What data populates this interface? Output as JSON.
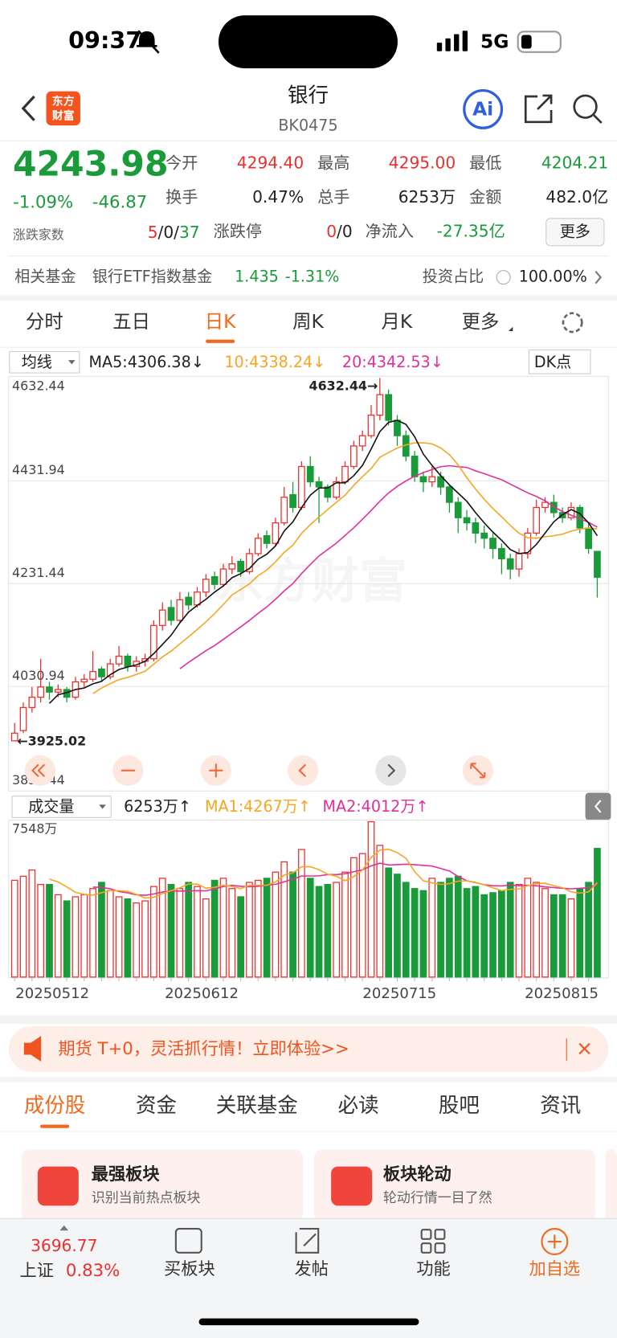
{
  "status": {
    "time": "09:37",
    "network": "5G"
  },
  "header": {
    "logo_top": "东方",
    "logo_bottom": "财富",
    "title": "银行",
    "code": "BK0475",
    "ai": "Ai"
  },
  "quote": {
    "price": "4243.98",
    "change_pct": "-1.09%",
    "change": "-46.87",
    "breadth_label": "涨跌家数",
    "breadth_up": "5",
    "breadth_flat": "/0/",
    "breadth_down": "37",
    "open_label": "今开",
    "open": "4294.40",
    "high_label": "最高",
    "high": "4295.00",
    "low_label": "最低",
    "low": "4204.21",
    "turnover_label": "换手",
    "turnover": "0.47%",
    "volume_label": "总手",
    "volume": "6253万",
    "amount_label": "金额",
    "amount": "482.0亿",
    "limit_label": "涨跌停",
    "limit_up": "0",
    "limit_rest": "/0",
    "inflow_label": "净流入",
    "inflow": "-27.35亿",
    "more": "更多"
  },
  "fund": {
    "label": "相关基金",
    "name": "银行ETF指数基金",
    "price": "1.435",
    "change": "-1.31%",
    "ratio_label": "投资占比",
    "ratio": "100.00%"
  },
  "tabs": [
    "分时",
    "五日",
    "日K",
    "周K",
    "月K",
    "更多"
  ],
  "kline": {
    "ma_select": "均线",
    "ma5": "MA5:4306.38↓",
    "ma10": "10:4338.24↓",
    "ma20": "20:4342.53↓",
    "dk": "DK点",
    "watermark": "东方财富",
    "ylim": [
      3830.44,
      4632.44
    ],
    "yticks": [
      4632.44,
      4431.94,
      4231.44,
      4030.94,
      3830.44
    ],
    "high_note": "4632.44→",
    "low_note": "←3925.02",
    "candles": [
      [
        3925,
        3960,
        3925.02,
        3940
      ],
      [
        3945,
        4000,
        3940,
        3990
      ],
      [
        3990,
        4030,
        3980,
        4010
      ],
      [
        4010,
        4085,
        4000,
        4030
      ],
      [
        4030,
        4040,
        4005,
        4020
      ],
      [
        4020,
        4035,
        4010,
        4025
      ],
      [
        4025,
        4030,
        4000,
        4010
      ],
      [
        4010,
        4050,
        4005,
        4040
      ],
      [
        4040,
        4055,
        4030,
        4045
      ],
      [
        4045,
        4100,
        4040,
        4060
      ],
      [
        4065,
        4070,
        4040,
        4050
      ],
      [
        4050,
        4085,
        4045,
        4075
      ],
      [
        4075,
        4110,
        4070,
        4090
      ],
      [
        4090,
        4095,
        4060,
        4070
      ],
      [
        4070,
        4090,
        4060,
        4080
      ],
      [
        4080,
        4095,
        4070,
        4085
      ],
      [
        4085,
        4160,
        4080,
        4150
      ],
      [
        4150,
        4195,
        4140,
        4180
      ],
      [
        4185,
        4200,
        4150,
        4160
      ],
      [
        4160,
        4215,
        4155,
        4200
      ],
      [
        4205,
        4215,
        4180,
        4190
      ],
      [
        4190,
        4225,
        4185,
        4215
      ],
      [
        4215,
        4250,
        4205,
        4240
      ],
      [
        4245,
        4255,
        4220,
        4230
      ],
      [
        4230,
        4270,
        4225,
        4260
      ],
      [
        4260,
        4285,
        4250,
        4270
      ],
      [
        4275,
        4280,
        4245,
        4255
      ],
      [
        4255,
        4300,
        4250,
        4290
      ],
      [
        4290,
        4330,
        4285,
        4320
      ],
      [
        4325,
        4335,
        4300,
        4310
      ],
      [
        4310,
        4360,
        4305,
        4350
      ],
      [
        4350,
        4420,
        4345,
        4400
      ],
      [
        4405,
        4430,
        4370,
        4380
      ],
      [
        4380,
        4470,
        4375,
        4460
      ],
      [
        4460,
        4480,
        4420,
        4430
      ],
      [
        4430,
        4440,
        4350,
        4420
      ],
      [
        4420,
        4425,
        4390,
        4400
      ],
      [
        4400,
        4440,
        4395,
        4430
      ],
      [
        4430,
        4470,
        4425,
        4460
      ],
      [
        4460,
        4510,
        4455,
        4500
      ],
      [
        4500,
        4530,
        4490,
        4520
      ],
      [
        4520,
        4580,
        4515,
        4560
      ],
      [
        4560,
        4632.44,
        4550,
        4600
      ],
      [
        4600,
        4610,
        4540,
        4550
      ],
      [
        4550,
        4560,
        4500,
        4520
      ],
      [
        4520,
        4530,
        4470,
        4480
      ],
      [
        4480,
        4490,
        4430,
        4440
      ],
      [
        4440,
        4450,
        4410,
        4430
      ],
      [
        4430,
        4460,
        4420,
        4440
      ],
      [
        4440,
        4450,
        4405,
        4420
      ],
      [
        4420,
        4425,
        4370,
        4390
      ],
      [
        4390,
        4400,
        4330,
        4360
      ],
      [
        4360,
        4375,
        4335,
        4350
      ],
      [
        4350,
        4360,
        4310,
        4330
      ],
      [
        4330,
        4345,
        4300,
        4320
      ],
      [
        4320,
        4330,
        4280,
        4300
      ],
      [
        4300,
        4310,
        4250,
        4280
      ],
      [
        4280,
        4290,
        4240,
        4260
      ],
      [
        4260,
        4300,
        4245,
        4290
      ],
      [
        4290,
        4340,
        4280,
        4330
      ],
      [
        4330,
        4395,
        4325,
        4380
      ],
      [
        4380,
        4400,
        4370,
        4390
      ],
      [
        4390,
        4405,
        4360,
        4370
      ],
      [
        4370,
        4380,
        4350,
        4360
      ],
      [
        4360,
        4390,
        4355,
        4380
      ],
      [
        4380,
        4385,
        4330,
        4340
      ],
      [
        4340,
        4350,
        4290,
        4300
      ],
      [
        4294.4,
        4295.0,
        4204.21,
        4243.98
      ]
    ]
  },
  "volume": {
    "select": "成交量",
    "current": "6253万↑",
    "ma1": "MA1:4267万↑",
    "ma2": "MA2:4012万↑",
    "max_label": "7548万",
    "ylim": [
      0,
      7548
    ],
    "values": [
      4700,
      4900,
      5200,
      4500,
      4500,
      4000,
      3700,
      3900,
      4000,
      4300,
      4600,
      4200,
      3900,
      3800,
      3600,
      3700,
      4400,
      4800,
      4500,
      4300,
      4600,
      4400,
      3800,
      4700,
      4800,
      4300,
      3900,
      4600,
      4700,
      4800,
      5100,
      5600,
      5100,
      6200,
      4800,
      4400,
      4500,
      4600,
      5100,
      5800,
      6000,
      7548,
      6400,
      5300,
      5000,
      4600,
      4300,
      4200,
      4800,
      4600,
      4800,
      4900,
      4300,
      4400,
      4000,
      4100,
      4200,
      4600,
      4500,
      4800,
      4600,
      4300,
      4000,
      4000,
      3800,
      4300,
      4600,
      6253
    ],
    "dates": [
      "20250512",
      "20250612",
      "20250715",
      "20250815"
    ]
  },
  "banner": {
    "text": "期货 T+0，灵活抓行情！立即体验>>"
  },
  "sections": [
    "成份股",
    "资金",
    "关联基金",
    "必读",
    "股吧",
    "资讯"
  ],
  "cards": [
    {
      "title": "最强板块",
      "desc": "识别当前热点板块"
    },
    {
      "title": "板块轮动",
      "desc": "轮动行情一目了然"
    }
  ],
  "bottom": {
    "index_value": "3696.77",
    "index_name": "上证",
    "index_change": "0.83%",
    "items": [
      "买板块",
      "发帖",
      "功能",
      "加自选"
    ]
  }
}
